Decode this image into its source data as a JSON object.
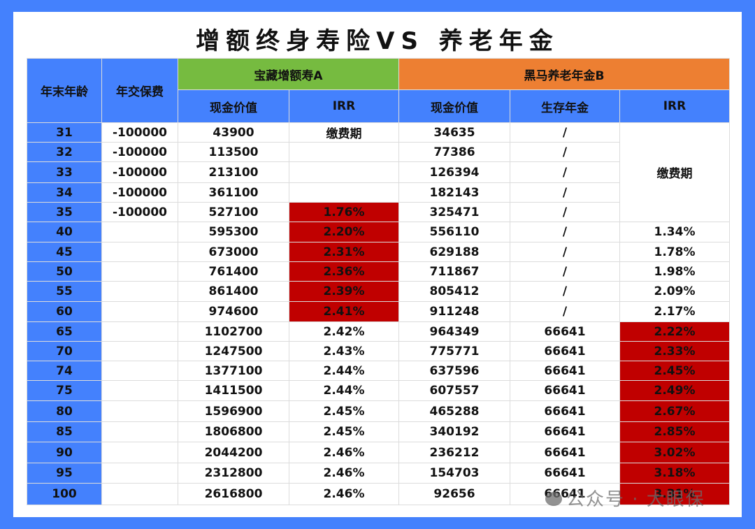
{
  "title": "增额终身寿险VS 养老年金",
  "colors": {
    "background": "#4481fd",
    "header_blue": "#4481fd",
    "product_a": "#76bb40",
    "product_b": "#ed7f32",
    "highlight_red": "#c00000"
  },
  "table": {
    "headers": {
      "age": "年末年龄",
      "premium": "年交保费",
      "product_a": "宝藏增额寿A",
      "product_b": "黑马养老年金B",
      "a_cash_value": "现金价值",
      "a_irr": "IRR",
      "b_cash_value": "现金价值",
      "b_annuity": "生存年金",
      "b_irr": "IRR"
    },
    "b_irr_merged_label": "缴费期",
    "rows": [
      {
        "age": "31",
        "premium": "-100000",
        "a_cv": "43900",
        "a_irr": "缴费期",
        "b_cv": "34635",
        "b_ann": "/",
        "b_irr": ""
      },
      {
        "age": "32",
        "premium": "-100000",
        "a_cv": "113500",
        "a_irr": "",
        "b_cv": "77386",
        "b_ann": "/",
        "b_irr": ""
      },
      {
        "age": "33",
        "premium": "-100000",
        "a_cv": "213100",
        "a_irr": "",
        "b_cv": "126394",
        "b_ann": "/",
        "b_irr": ""
      },
      {
        "age": "34",
        "premium": "-100000",
        "a_cv": "361100",
        "a_irr": "",
        "b_cv": "182143",
        "b_ann": "/",
        "b_irr": ""
      },
      {
        "age": "35",
        "premium": "-100000",
        "a_cv": "527100",
        "a_irr": "1.76%",
        "b_cv": "325471",
        "b_ann": "/",
        "b_irr": ""
      },
      {
        "age": "40",
        "premium": "",
        "a_cv": "595300",
        "a_irr": "2.20%",
        "b_cv": "556110",
        "b_ann": "/",
        "b_irr": "1.34%"
      },
      {
        "age": "45",
        "premium": "",
        "a_cv": "673000",
        "a_irr": "2.31%",
        "b_cv": "629188",
        "b_ann": "/",
        "b_irr": "1.78%"
      },
      {
        "age": "50",
        "premium": "",
        "a_cv": "761400",
        "a_irr": "2.36%",
        "b_cv": "711867",
        "b_ann": "/",
        "b_irr": "1.98%"
      },
      {
        "age": "55",
        "premium": "",
        "a_cv": "861400",
        "a_irr": "2.39%",
        "b_cv": "805412",
        "b_ann": "/",
        "b_irr": "2.09%"
      },
      {
        "age": "60",
        "premium": "",
        "a_cv": "974600",
        "a_irr": "2.41%",
        "b_cv": "911248",
        "b_ann": "/",
        "b_irr": "2.17%"
      },
      {
        "age": "65",
        "premium": "",
        "a_cv": "1102700",
        "a_irr": "2.42%",
        "b_cv": "964349",
        "b_ann": "66641",
        "b_irr": "2.22%"
      },
      {
        "age": "70",
        "premium": "",
        "a_cv": "1247500",
        "a_irr": "2.43%",
        "b_cv": "775771",
        "b_ann": "66641",
        "b_irr": "2.33%"
      },
      {
        "age": "74",
        "premium": "",
        "a_cv": "1377100",
        "a_irr": "2.44%",
        "b_cv": "637596",
        "b_ann": "66641",
        "b_irr": "2.45%"
      },
      {
        "age": "75",
        "premium": "",
        "a_cv": "1411500",
        "a_irr": "2.44%",
        "b_cv": "607557",
        "b_ann": "66641",
        "b_irr": "2.49%"
      },
      {
        "age": "80",
        "premium": "",
        "a_cv": "1596900",
        "a_irr": "2.45%",
        "b_cv": "465288",
        "b_ann": "66641",
        "b_irr": "2.67%"
      },
      {
        "age": "85",
        "premium": "",
        "a_cv": "1806800",
        "a_irr": "2.45%",
        "b_cv": "340192",
        "b_ann": "66641",
        "b_irr": "2.85%"
      },
      {
        "age": "90",
        "premium": "",
        "a_cv": "2044200",
        "a_irr": "2.46%",
        "b_cv": "236212",
        "b_ann": "66641",
        "b_irr": "3.02%"
      },
      {
        "age": "95",
        "premium": "",
        "a_cv": "2312800",
        "a_irr": "2.46%",
        "b_cv": "154703",
        "b_ann": "66641",
        "b_irr": "3.18%"
      },
      {
        "age": "100",
        "premium": "",
        "a_cv": "2616800",
        "a_irr": "2.46%",
        "b_cv": "92656",
        "b_ann": "66641",
        "b_irr": "3.31%"
      }
    ]
  },
  "watermark": {
    "icon": "wechat-icon",
    "text": "公众号 · 大眼保"
  }
}
